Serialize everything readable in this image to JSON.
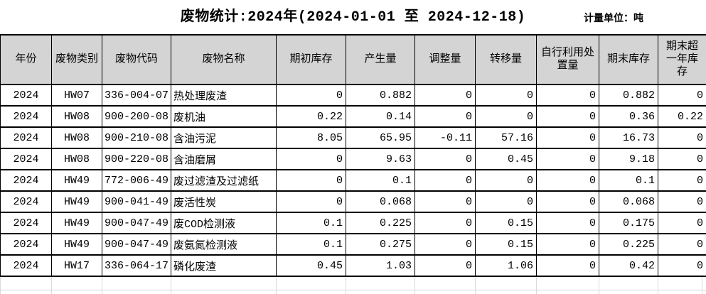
{
  "title": "废物统计:2024年(2024-01-01 至 2024-12-18)",
  "unit_label": "计量单位：吨",
  "table": {
    "columns": [
      "年份",
      "废物类别",
      "废物代码",
      "废物名称",
      "期初库存",
      "产生量",
      "调整量",
      "转移量",
      "自行利用处置量",
      "期末库存",
      "期末超一年库存"
    ],
    "rows": [
      [
        "2024",
        "HW07",
        "336-004-07",
        "热处理废渣",
        "0",
        "0.882",
        "0",
        "0",
        "0",
        "0.882",
        "0"
      ],
      [
        "2024",
        "HW08",
        "900-200-08",
        "废机油",
        "0.22",
        "0.14",
        "0",
        "0",
        "0",
        "0.36",
        "0.22"
      ],
      [
        "2024",
        "HW08",
        "900-210-08",
        "含油污泥",
        "8.05",
        "65.95",
        "-0.11",
        "57.16",
        "0",
        "16.73",
        "0"
      ],
      [
        "2024",
        "HW08",
        "900-220-08",
        "含油磨屑",
        "0",
        "9.63",
        "0",
        "0.45",
        "0",
        "9.18",
        "0"
      ],
      [
        "2024",
        "HW49",
        "772-006-49",
        "废过滤渣及过滤纸",
        "0",
        "0.1",
        "0",
        "0",
        "0",
        "0.1",
        "0"
      ],
      [
        "2024",
        "HW49",
        "900-041-49",
        "废活性炭",
        "0",
        "0.068",
        "0",
        "0",
        "0",
        "0.068",
        "0"
      ],
      [
        "2024",
        "HW49",
        "900-047-49",
        "废COD检测液",
        "0.1",
        "0.225",
        "0",
        "0.15",
        "0",
        "0.175",
        "0"
      ],
      [
        "2024",
        "HW49",
        "900-047-49",
        "废氨氮检测液",
        "0.1",
        "0.275",
        "0",
        "0.15",
        "0",
        "0.225",
        "0"
      ],
      [
        "2024",
        "HW17",
        "336-064-17",
        "磷化废渣",
        "0.45",
        "1.03",
        "0",
        "1.06",
        "0",
        "0.42",
        "0"
      ]
    ]
  },
  "colors": {
    "header_bg": "#d4d4d4",
    "table_border": "#000000",
    "faint_grid": "#d9d9d9",
    "background": "#ffffff",
    "text": "#000000"
  }
}
